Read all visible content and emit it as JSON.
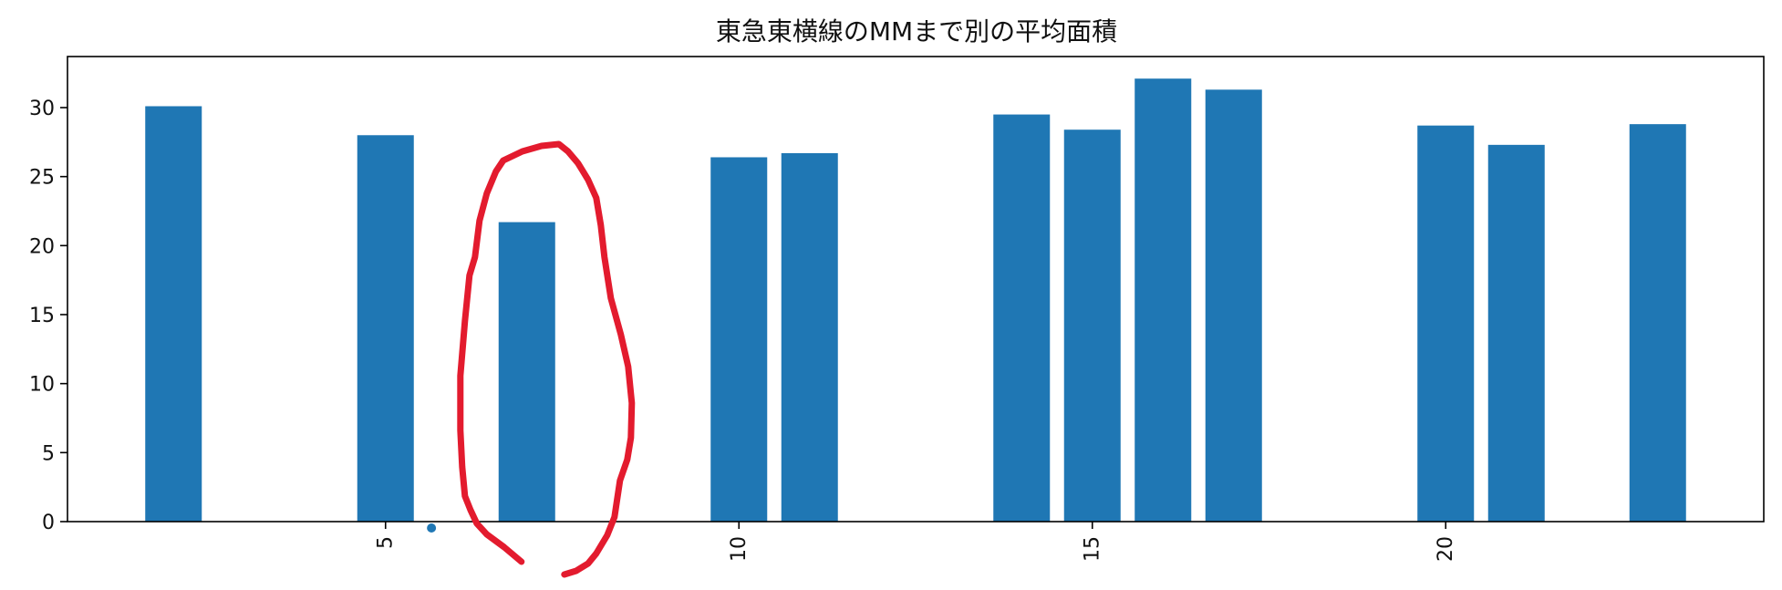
{
  "chart_data": {
    "type": "bar",
    "title": "東急東横線のMMまで別の平均面積",
    "xlabel": "",
    "ylabel": "",
    "x": [
      2,
      5,
      7,
      10,
      11,
      14,
      15,
      16,
      17,
      20,
      21,
      23
    ],
    "values": [
      30.1,
      28.0,
      21.7,
      26.4,
      26.7,
      29.5,
      28.4,
      32.1,
      31.3,
      28.7,
      27.3,
      28.8
    ],
    "xlim": [
      0.5,
      24.5
    ],
    "ylim": [
      0,
      33.7
    ],
    "xticks": [
      5,
      10,
      15,
      20
    ],
    "xtick_labels": [
      "5",
      "10",
      "15",
      "20"
    ],
    "xtick_rotation": 90,
    "yticks": [
      0,
      5,
      10,
      15,
      20,
      25,
      30
    ],
    "ytick_labels": [
      "0",
      "5",
      "10",
      "15",
      "20",
      "25",
      "30"
    ],
    "grid": false,
    "bar_color": "#1f77b4",
    "annotation_color": "#e31b2e",
    "annotation": {
      "type": "hand-drawn-circle",
      "target_x": 7,
      "marker_x": 5.65,
      "marker_color": "#1f77b4"
    }
  }
}
